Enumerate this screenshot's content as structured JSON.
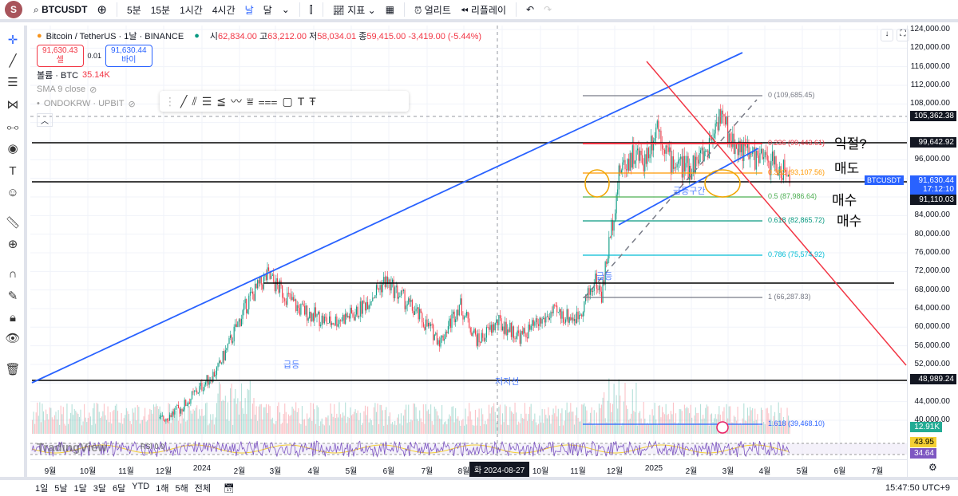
{
  "topbar": {
    "avatar": "S",
    "symbol": "BTCUSDT",
    "intervals": [
      "5분",
      "15분",
      "1시간",
      "4시간",
      "날",
      "달"
    ],
    "active_interval": "날",
    "indicators": "지표",
    "alert": "얼리트",
    "replay": "리플레이"
  },
  "legend": {
    "title": "Bitcoin / TetherUS · 1날 · BINANCE",
    "o_label": "시",
    "o": "62,834.00",
    "h_label": "고",
    "h": "63,212.00",
    "l_label": "저",
    "l": "58,034.01",
    "c_label": "종",
    "c": "59,415.00",
    "change": "-3,419.00 (-5.44%)",
    "sell_price": "91,630.43",
    "sell_label": "셀",
    "spread": "0.01",
    "buy_price": "91,630.44",
    "buy_label": "바이",
    "volume_label": "볼륨 · BTC",
    "volume": "35.14K",
    "sma": "SMA 9 close",
    "compare": "ONDOKRW · UPBIT"
  },
  "price_axis": {
    "labels": [
      "124,000.00",
      "120,000.00",
      "116,000.00",
      "112,000.00",
      "108,000.00",
      "96,000.00",
      "84,000.00",
      "80,000.00",
      "76,000.00",
      "72,000.00",
      "68,000.00",
      "64,000.00",
      "60,000.00",
      "56,000.00",
      "52,000.00",
      "44,000.00",
      "40,000.00"
    ],
    "tags": {
      "crosshair": "105,362.38",
      "level1": "99,642.92",
      "symbol": "BTCUSDT",
      "last": "91,630.44",
      "countdown": "17:12:10",
      "level2": "91,110.03",
      "level3": "48,989.24",
      "volume": "12.91K",
      "rsi1": "43.95",
      "rsi2": "34.64"
    }
  },
  "fib": [
    {
      "label": "0 (109,685.45)",
      "color": "#787b86"
    },
    {
      "label": "0.236 (99,443.61)",
      "color": "#f23645"
    },
    {
      "label": "0.382 (93,107.56)",
      "color": "#ff9800"
    },
    {
      "label": "0.5 (87,986.64)",
      "color": "#4caf50"
    },
    {
      "label": "0.618 (82,865.72)",
      "color": "#089981"
    },
    {
      "label": "0.786 (75,574.92)",
      "color": "#00bcd4"
    },
    {
      "label": "1 (66,287.83)",
      "color": "#787b86"
    },
    {
      "label": "1.618 (39,468.10)",
      "color": "#2962ff"
    }
  ],
  "annotations": {
    "take_profit": "익절?",
    "sell": "매도",
    "buy1": "매수",
    "buy2": "매수",
    "surge1": "급등",
    "surge2": "급등",
    "surge_zone": "급등구간",
    "support": "저지선"
  },
  "rsi_label": "RSI 0 0",
  "watermark": "TradingView",
  "time_axis": {
    "labels": [
      "9월",
      "10월",
      "11월",
      "12월",
      "2024",
      "2월",
      "3월",
      "4월",
      "5월",
      "6월",
      "7월",
      "8월",
      "10월",
      "11월",
      "12월",
      "2025",
      "2월",
      "3월",
      "4월",
      "5월",
      "6월",
      "7월"
    ],
    "crosshair_date": "화 2024-08-27"
  },
  "price_path": [
    [
      0,
      26000
    ],
    [
      30,
      27500
    ],
    [
      60,
      35000
    ],
    [
      90,
      38000
    ],
    [
      120,
      42500
    ],
    [
      150,
      51000
    ],
    [
      175,
      66000
    ],
    [
      190,
      71000
    ],
    [
      215,
      64000
    ],
    [
      240,
      61000
    ],
    [
      262,
      63000
    ],
    [
      285,
      70000
    ],
    [
      300,
      66000
    ],
    [
      330,
      57000
    ],
    [
      345,
      65000
    ],
    [
      360,
      57000
    ],
    [
      376,
      61000
    ],
    [
      395,
      58000
    ],
    [
      420,
      63000
    ],
    [
      440,
      62000
    ],
    [
      455,
      70000
    ],
    [
      460,
      67000
    ],
    [
      475,
      94000
    ],
    [
      485,
      97000
    ],
    [
      495,
      96000
    ],
    [
      505,
      104000
    ],
    [
      515,
      96000
    ],
    [
      530,
      94000
    ],
    [
      545,
      98000
    ],
    [
      555,
      106000
    ],
    [
      565,
      100000
    ],
    [
      580,
      97000
    ],
    [
      600,
      95000
    ],
    [
      612,
      92000
    ]
  ],
  "bottombar": {
    "ranges": [
      "1일",
      "5날",
      "1달",
      "3달",
      "6달",
      "YTD",
      "1해",
      "5해",
      "전체"
    ],
    "clock": "15:47:50 UTC+9"
  },
  "colors": {
    "up": "#089981",
    "down": "#f23645",
    "accent": "#2962ff"
  }
}
